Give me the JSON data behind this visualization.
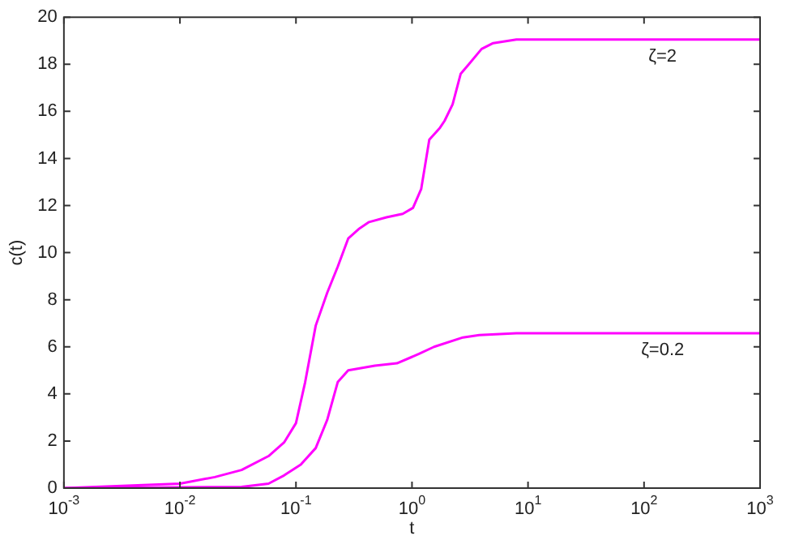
{
  "chart_data": {
    "type": "line",
    "xlabel": "t",
    "ylabel": "c(t)",
    "log": "x",
    "grid": false,
    "legend": false,
    "marker": "none",
    "line_style": "solid",
    "xlim": [
      0.001,
      1000
    ],
    "xticks": [
      {
        "value": 0.001,
        "label": "10$^{-3}$"
      },
      {
        "value": 0.01,
        "label": "10$^{-2}$"
      },
      {
        "value": 0.1,
        "label": "10$^{-1}$"
      },
      {
        "value": 1,
        "label": "10$^{0}$"
      },
      {
        "value": 10,
        "label": "10$^{1}$"
      },
      {
        "value": 100,
        "label": "10$^{2}$"
      },
      {
        "value": 1000,
        "label": "10$^{3}$"
      }
    ],
    "ylim": [
      0,
      20
    ],
    "yticks": [
      0,
      2,
      4,
      6,
      8,
      10,
      12,
      14,
      16,
      18,
      20
    ],
    "series": [
      {
        "name": "ζ=2",
        "color": "#ff00ff",
        "x": [
          0.001,
          0.01,
          0.02,
          0.034,
          0.058,
          0.079,
          0.1,
          0.12,
          0.148,
          0.186,
          0.229,
          0.282,
          0.347,
          0.427,
          0.603,
          0.832,
          1.02,
          1.2,
          1.41,
          1.74,
          1.91,
          2.24,
          2.63,
          3.09,
          3.98,
          5.01,
          7.94,
          1000
        ],
        "values": [
          0,
          0.19,
          0.47,
          0.77,
          1.36,
          1.94,
          2.76,
          4.5,
          6.9,
          8.3,
          9.4,
          10.6,
          11.0,
          11.3,
          11.5,
          11.65,
          11.9,
          12.7,
          14.8,
          15.3,
          15.6,
          16.3,
          17.6,
          18.0,
          18.65,
          18.9,
          19.05,
          19.05
        ]
      },
      {
        "name": "ζ=0.2",
        "color": "#ff00ff",
        "x": [
          0.001,
          0.034,
          0.058,
          0.079,
          0.11,
          0.148,
          0.186,
          0.229,
          0.282,
          0.479,
          0.741,
          1.15,
          1.55,
          2.75,
          3.8,
          7.94,
          1000
        ],
        "values": [
          0,
          0.05,
          0.19,
          0.54,
          1.0,
          1.7,
          2.9,
          4.5,
          5.0,
          5.2,
          5.3,
          5.7,
          6.0,
          6.4,
          6.5,
          6.58,
          6.58
        ]
      }
    ]
  }
}
